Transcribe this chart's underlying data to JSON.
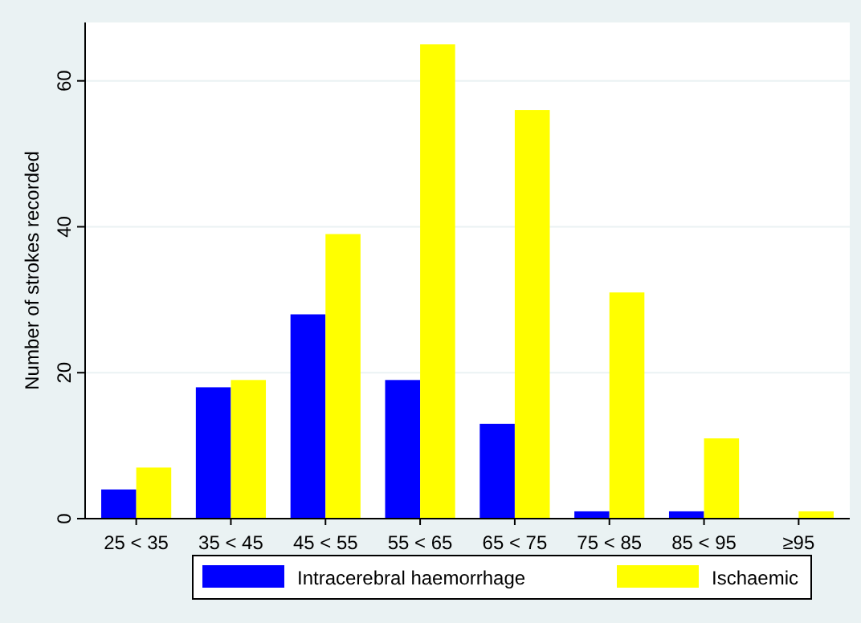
{
  "chart_data": {
    "type": "bar",
    "ylabel": "Number of strokes recorded",
    "categories": [
      "25 < 35",
      "35 < 45",
      "45 < 55",
      "55 < 65",
      "65 < 75",
      "75 < 85",
      "85 < 95",
      "≥95"
    ],
    "series": [
      {
        "name": "Intracerebral haemorrhage",
        "color": "#0000ff",
        "values": [
          4,
          18,
          28,
          19,
          13,
          1,
          1,
          0
        ]
      },
      {
        "name": "Ischaemic",
        "color": "#ffff00",
        "values": [
          7,
          19,
          39,
          65,
          56,
          31,
          11,
          1
        ]
      }
    ],
    "ylim": [
      0,
      68
    ],
    "yticks": [
      0,
      20,
      40,
      60
    ],
    "grid": "y",
    "legend": "bottom"
  }
}
